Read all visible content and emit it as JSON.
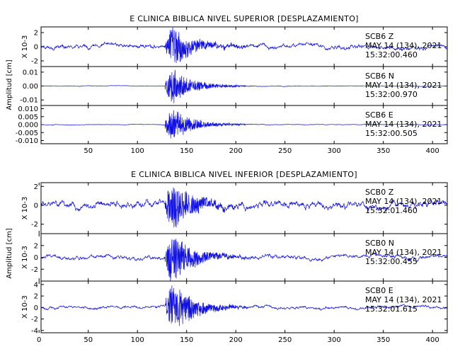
{
  "chart_data": [
    {
      "type": "line",
      "title": "E CLINICA BIBLICA NIVEL SUPERIOR [DESPLAZAMIENTO]",
      "ylabel": "Amplitud [cm]",
      "xlim": [
        2,
        415
      ],
      "xticks": [
        50,
        100,
        150,
        200,
        250,
        300,
        350,
        400
      ],
      "xtick_labels": [
        "50",
        "100",
        "150",
        "200",
        "250",
        "300",
        "350",
        "400"
      ],
      "traces": [
        {
          "station": "SCB6",
          "component": "Z",
          "date": "MAY 14 (134), 2021",
          "time": "15:32:00.460",
          "unit_label": "X 10-3",
          "ylim": [
            -2.8,
            2.8
          ],
          "yticks": [
            2,
            0,
            -2
          ],
          "ytick_labels": [
            "2",
            "0",
            "-2"
          ],
          "peak": 2.5,
          "noise": 0.55
        },
        {
          "station": "SCB6",
          "component": "N",
          "date": "MAY 14 (134), 2021",
          "time": "15:32:00.970",
          "unit_label": "",
          "ylim": [
            -0.014,
            0.014
          ],
          "yticks": [
            0.01,
            0.0,
            -0.01
          ],
          "ytick_labels": [
            "0.01",
            "0.00",
            "-0.01"
          ],
          "peak": 0.011,
          "noise": 0.0004
        },
        {
          "station": "SCB6",
          "component": "E",
          "date": "MAY 14 (134), 2021",
          "time": "15:32:00.505",
          "unit_label": "",
          "ylim": [
            -0.012,
            0.012
          ],
          "yticks": [
            0.01,
            0.005,
            0.0,
            -0.005,
            -0.01
          ],
          "ytick_labels": [
            "0.010",
            "0.005",
            "0.000",
            "-0.005",
            "-0.010"
          ],
          "peak": 0.009,
          "noise": 0.0003
        }
      ]
    },
    {
      "type": "line",
      "title": "E CLINICA BIBLICA NIVEL INFERIOR [DESPLAZAMIENTO]",
      "ylabel": "Amplitud [cm]",
      "xlim": [
        2,
        415
      ],
      "xticks": [
        0,
        50,
        100,
        150,
        200,
        250,
        300,
        350,
        400
      ],
      "xtick_labels": [
        "0",
        "50",
        "100",
        "150",
        "200",
        "250",
        "300",
        "350",
        "400"
      ],
      "traces": [
        {
          "station": "SCB0",
          "component": "Z",
          "date": "MAY 14 (134), 2021",
          "time": "15:32:01.460",
          "unit_label": "X 10-3",
          "ylim": [
            -3.0,
            2.4
          ],
          "yticks": [
            2,
            0,
            -2
          ],
          "ytick_labels": [
            "2",
            "0",
            "-2"
          ],
          "peak": 2.3,
          "noise": 0.7
        },
        {
          "station": "SCB0",
          "component": "N",
          "date": "MAY 14 (134), 2021",
          "time": "15:32:00.455",
          "unit_label": "X 10-3",
          "ylim": [
            -4.0,
            4.0
          ],
          "yticks": [
            2,
            0,
            -2
          ],
          "ytick_labels": [
            "2",
            "0",
            "-2"
          ],
          "peak": 3.8,
          "noise": 0.6
        },
        {
          "station": "SCB0",
          "component": "E",
          "date": "MAY 14 (134), 2021",
          "time": "15:32:01.615",
          "unit_label": "X 10-3",
          "ylim": [
            -4.4,
            4.6
          ],
          "yticks": [
            4,
            2,
            0,
            -2,
            -4
          ],
          "ytick_labels": [
            "4",
            "2",
            "0",
            "-2",
            "-4"
          ],
          "peak": 4.2,
          "noise": 0.45
        }
      ]
    }
  ]
}
